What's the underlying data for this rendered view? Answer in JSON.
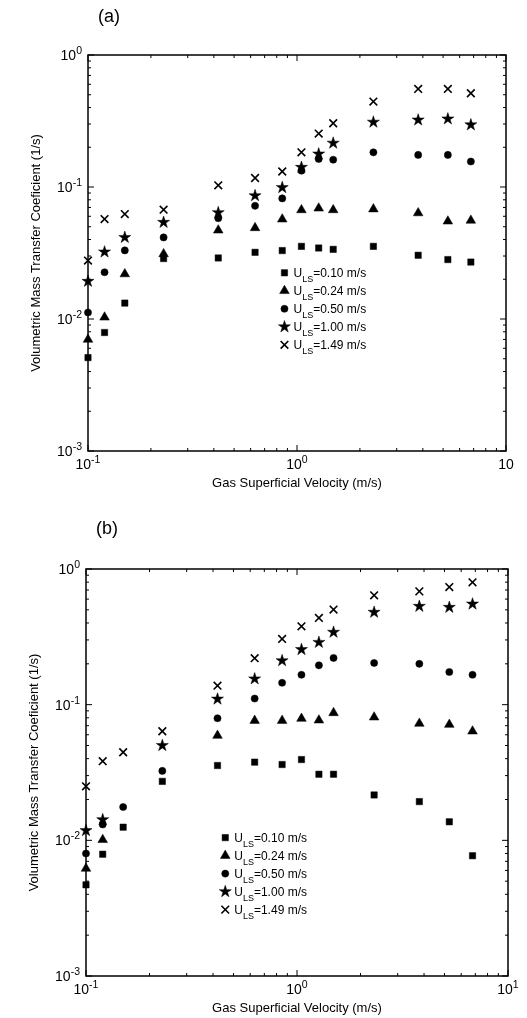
{
  "chart_data": [
    {
      "type": "scatter",
      "title": "(a)",
      "xlabel": "Gas Superficial Velocity (m/s)",
      "ylabel": "Volumetric Mass Transfer Coeficient (1/s)",
      "log": "xy",
      "grid": false,
      "legend": "center",
      "x": [
        0.1,
        0.12,
        0.15,
        0.23,
        0.42,
        0.63,
        0.85,
        1.05,
        1.27,
        1.49,
        2.32,
        3.8,
        5.27,
        6.79
      ],
      "xlim": [
        0.1,
        10
      ],
      "ylim": [
        0.001,
        1
      ],
      "xticks": [
        {
          "value": 0.1,
          "label": "10$^{-1}$"
        },
        {
          "value": 0.2,
          "label": null
        },
        {
          "value": 0.3,
          "label": null
        },
        {
          "value": 0.4,
          "label": null
        },
        {
          "value": 0.5,
          "label": null
        },
        {
          "value": 0.6,
          "label": null
        },
        {
          "value": 0.7,
          "label": null
        },
        {
          "value": 0.8,
          "label": null
        },
        {
          "value": 0.9,
          "label": null
        },
        {
          "value": 1,
          "label": "10$^{0}$"
        },
        {
          "value": 2,
          "label": null
        },
        {
          "value": 3,
          "label": null
        },
        {
          "value": 4,
          "label": null
        },
        {
          "value": 5,
          "label": null
        },
        {
          "value": 6,
          "label": null
        },
        {
          "value": 7,
          "label": null
        },
        {
          "value": 8,
          "label": null
        },
        {
          "value": 9,
          "label": null
        },
        {
          "value": 10,
          "label": "10"
        }
      ],
      "yticks": [
        {
          "value": 0.001,
          "label": "10$^{-3}$"
        },
        {
          "value": 0.002,
          "label": null
        },
        {
          "value": 0.003,
          "label": null
        },
        {
          "value": 0.004,
          "label": null
        },
        {
          "value": 0.005,
          "label": null
        },
        {
          "value": 0.006,
          "label": null
        },
        {
          "value": 0.007,
          "label": null
        },
        {
          "value": 0.008,
          "label": null
        },
        {
          "value": 0.009,
          "label": null
        },
        {
          "value": 0.01,
          "label": "10$^{-2}$"
        },
        {
          "value": 0.02,
          "label": null
        },
        {
          "value": 0.03,
          "label": null
        },
        {
          "value": 0.04,
          "label": null
        },
        {
          "value": 0.05,
          "label": null
        },
        {
          "value": 0.06,
          "label": null
        },
        {
          "value": 0.07,
          "label": null
        },
        {
          "value": 0.08,
          "label": null
        },
        {
          "value": 0.09,
          "label": null
        },
        {
          "value": 0.1,
          "label": "10$^{-1}$"
        },
        {
          "value": 0.2,
          "label": null
        },
        {
          "value": 0.3,
          "label": null
        },
        {
          "value": 0.4,
          "label": null
        },
        {
          "value": 0.5,
          "label": null
        },
        {
          "value": 0.6,
          "label": null
        },
        {
          "value": 0.7,
          "label": null
        },
        {
          "value": 0.8,
          "label": null
        },
        {
          "value": 0.9,
          "label": null
        },
        {
          "value": 1,
          "label": "10$^{0}$"
        }
      ],
      "series": [
        {
          "name": "U$_{LS}$=0.10 m/s",
          "color": "#000000",
          "marker": "square",
          "values": [
            0.0051,
            0.0079,
            0.0132,
            0.0287,
            0.029,
            0.032,
            0.033,
            0.0355,
            0.0345,
            0.0337,
            0.0355,
            0.0304,
            0.0282,
            0.027
          ]
        },
        {
          "name": "U$_{LS}$=0.24 m/s",
          "color": "#000000",
          "marker": "triangle",
          "values": [
            0.007,
            0.0103,
            0.0219,
            0.0311,
            0.047,
            0.049,
            0.057,
            0.067,
            0.069,
            0.067,
            0.068,
            0.0635,
            0.055,
            0.0558
          ]
        },
        {
          "name": "U$_{LS}$=0.50 m/s",
          "color": "#000000",
          "marker": "circle",
          "values": [
            0.0112,
            0.0226,
            0.0331,
            0.0415,
            0.058,
            0.072,
            0.082,
            0.133,
            0.163,
            0.161,
            0.183,
            0.175,
            0.175,
            0.156
          ]
        },
        {
          "name": "U$_{LS}$=1.00 m/s",
          "color": "#000000",
          "marker": "star",
          "values": [
            0.0193,
            0.0322,
            0.0415,
            0.054,
            0.064,
            0.086,
            0.099,
            0.141,
            0.178,
            0.215,
            0.31,
            0.322,
            0.328,
            0.296
          ]
        },
        {
          "name": "U$_{LS}$=1.49 m/s",
          "color": "#000000",
          "marker": "cross",
          "values": [
            0.0277,
            0.0572,
            0.0624,
            0.0673,
            0.103,
            0.117,
            0.131,
            0.183,
            0.254,
            0.304,
            0.444,
            0.553,
            0.553,
            0.513
          ]
        }
      ]
    },
    {
      "type": "scatter",
      "title": "(b)",
      "xlabel": "Gas Superficial Velocity (m/s)",
      "ylabel": "Volumetric Mass Transfer Coeficient (1/s)",
      "log": "xy",
      "grid": false,
      "legend": "bottom left",
      "x": [
        0.1,
        0.12,
        0.15,
        0.23,
        0.42,
        0.63,
        0.85,
        1.05,
        1.27,
        1.49,
        2.32,
        3.8,
        5.27,
        6.79
      ],
      "xlim": [
        0.1,
        10
      ],
      "ylim": [
        0.001,
        1
      ],
      "xticks": [
        {
          "value": 0.1,
          "label": "10$^{-1}$"
        },
        {
          "value": 0.2,
          "label": null
        },
        {
          "value": 0.3,
          "label": null
        },
        {
          "value": 0.4,
          "label": null
        },
        {
          "value": 0.5,
          "label": null
        },
        {
          "value": 0.6,
          "label": null
        },
        {
          "value": 0.7,
          "label": null
        },
        {
          "value": 0.8,
          "label": null
        },
        {
          "value": 0.9,
          "label": null
        },
        {
          "value": 1,
          "label": "10$^{0}$"
        },
        {
          "value": 2,
          "label": null
        },
        {
          "value": 3,
          "label": null
        },
        {
          "value": 4,
          "label": null
        },
        {
          "value": 5,
          "label": null
        },
        {
          "value": 6,
          "label": null
        },
        {
          "value": 7,
          "label": null
        },
        {
          "value": 8,
          "label": null
        },
        {
          "value": 9,
          "label": null
        },
        {
          "value": 10,
          "label": "10$^{1}$"
        }
      ],
      "yticks": [
        {
          "value": 0.001,
          "label": "10$^{-3}$"
        },
        {
          "value": 0.002,
          "label": null
        },
        {
          "value": 0.003,
          "label": null
        },
        {
          "value": 0.004,
          "label": null
        },
        {
          "value": 0.005,
          "label": null
        },
        {
          "value": 0.006,
          "label": null
        },
        {
          "value": 0.007,
          "label": null
        },
        {
          "value": 0.008,
          "label": null
        },
        {
          "value": 0.009,
          "label": null
        },
        {
          "value": 0.01,
          "label": "10$^{-2}$"
        },
        {
          "value": 0.02,
          "label": null
        },
        {
          "value": 0.03,
          "label": null
        },
        {
          "value": 0.04,
          "label": null
        },
        {
          "value": 0.05,
          "label": null
        },
        {
          "value": 0.06,
          "label": null
        },
        {
          "value": 0.07,
          "label": null
        },
        {
          "value": 0.08,
          "label": null
        },
        {
          "value": 0.09,
          "label": null
        },
        {
          "value": 0.1,
          "label": "10$^{-1}$"
        },
        {
          "value": 0.2,
          "label": null
        },
        {
          "value": 0.3,
          "label": null
        },
        {
          "value": 0.4,
          "label": null
        },
        {
          "value": 0.5,
          "label": null
        },
        {
          "value": 0.6,
          "label": null
        },
        {
          "value": 0.7,
          "label": null
        },
        {
          "value": 0.8,
          "label": null
        },
        {
          "value": 0.9,
          "label": null
        },
        {
          "value": 1,
          "label": "10$^{0}$"
        }
      ],
      "series": [
        {
          "name": "U$_{LS}$=0.10 m/s",
          "color": "#000000",
          "marker": "square",
          "values": [
            0.0047,
            0.0079,
            0.0125,
            0.0272,
            0.0356,
            0.0377,
            0.0362,
            0.0394,
            0.0307,
            0.0307,
            0.0216,
            0.0193,
            0.0137,
            0.0077
          ]
        },
        {
          "name": "U$_{LS}$=0.24 m/s",
          "color": "#000000",
          "marker": "triangle",
          "values": [
            0.0062,
            0.0101,
            null,
            null,
            0.0592,
            0.0763,
            0.0763,
            0.079,
            0.0768,
            0.087,
            0.0808,
            0.0726,
            0.0713,
            0.0637
          ]
        },
        {
          "name": "U$_{LS}$=0.50 m/s",
          "color": "#000000",
          "marker": "circle",
          "values": [
            0.008,
            0.0131,
            0.0176,
            0.0325,
            0.0794,
            0.111,
            0.145,
            0.166,
            0.195,
            0.221,
            0.203,
            0.2,
            0.174,
            0.166
          ]
        },
        {
          "name": "U$_{LS}$=1.00 m/s",
          "color": "#000000",
          "marker": "star",
          "values": [
            0.0118,
            0.0142,
            null,
            0.05,
            0.11,
            0.155,
            0.211,
            0.255,
            0.288,
            0.342,
            0.48,
            0.531,
            0.522,
            0.552
          ]
        },
        {
          "name": "U$_{LS}$=1.49 m/s",
          "color": "#000000",
          "marker": "cross",
          "values": [
            0.025,
            0.0383,
            0.0446,
            0.0637,
            0.138,
            0.22,
            0.305,
            0.378,
            0.436,
            0.502,
            0.64,
            0.684,
            0.736,
            0.798
          ]
        }
      ]
    }
  ]
}
